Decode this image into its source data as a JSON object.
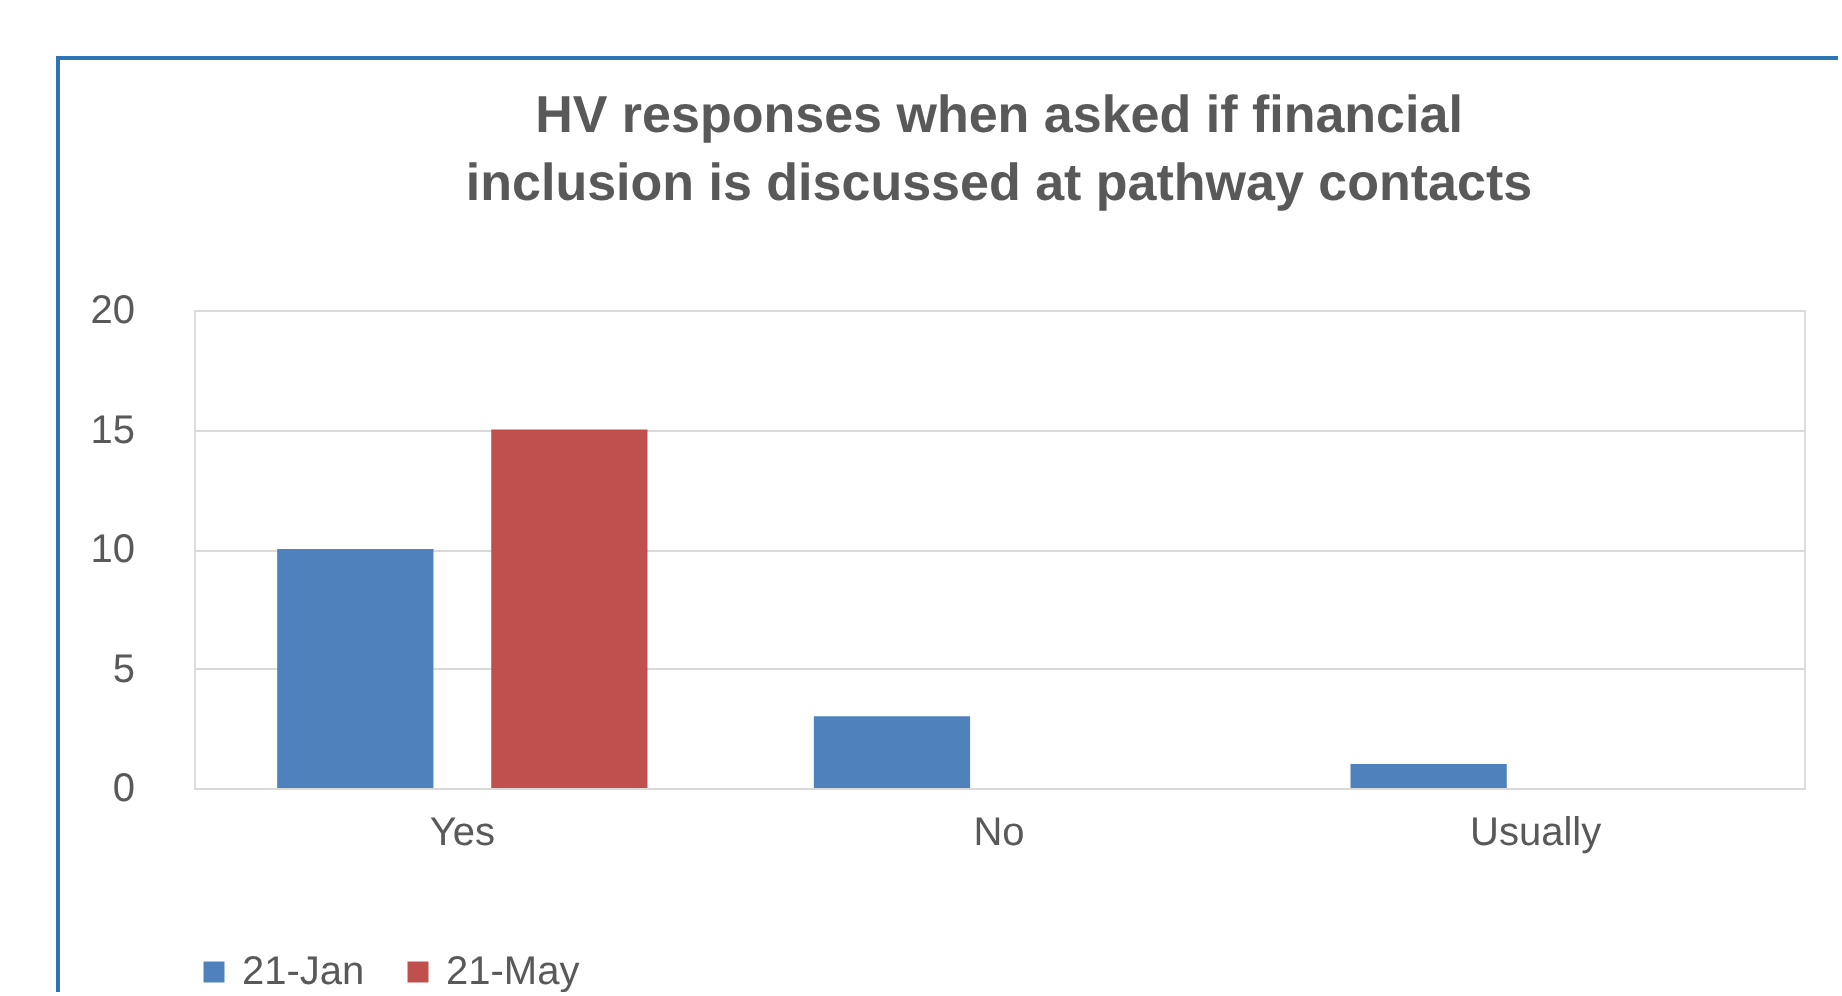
{
  "chart_data": {
    "type": "bar",
    "title": "HV responses when asked if financial inclusion is discussed at pathway contacts",
    "categories": [
      "Yes",
      "No",
      "Usually"
    ],
    "series": [
      {
        "name": "21-Jan",
        "color": "#4f81bd",
        "values": [
          10,
          3,
          1
        ]
      },
      {
        "name": "21-May",
        "color": "#c0504d",
        "values": [
          15,
          0,
          0
        ]
      }
    ],
    "ylim": [
      0,
      20
    ],
    "yticks": [
      0,
      5,
      10,
      15,
      20
    ],
    "grid": "y",
    "legend": "bottom"
  }
}
